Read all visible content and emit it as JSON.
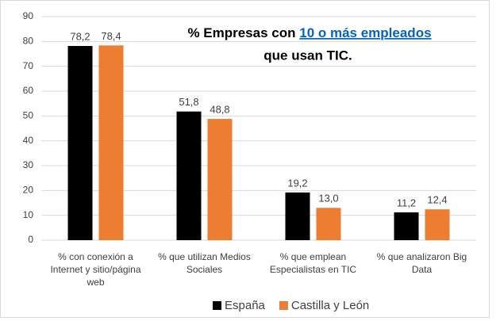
{
  "chart_data": {
    "type": "bar",
    "title": {
      "prefix": "% Empresas con",
      "highlight": "10 o más empleados",
      "suffix": "que usan TIC."
    },
    "categories": [
      "% con conexión a Internet y sitio/página web",
      "% que utilizan Medios Sociales",
      "% que emplean Especialistas en TIC",
      "% que analizaron Big Data"
    ],
    "series": [
      {
        "name": "España",
        "color": "#000000",
        "values": [
          78.2,
          51.8,
          19.2,
          11.2
        ],
        "value_labels": [
          "78,2",
          "51,8",
          "19,2",
          "11,2"
        ]
      },
      {
        "name": "Castilla y León",
        "color": "#ed7d31",
        "values": [
          78.4,
          48.8,
          13.0,
          12.4
        ],
        "value_labels": [
          "78,4",
          "48,8",
          "13,0",
          "12,4"
        ]
      }
    ],
    "ylim": [
      0,
      90
    ],
    "yticks": [
      0,
      10,
      20,
      30,
      40,
      50,
      60,
      70,
      80,
      90
    ],
    "grid": true,
    "legend": "bottom"
  }
}
